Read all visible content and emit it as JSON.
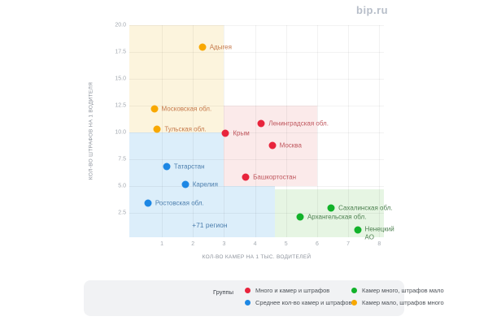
{
  "logo": {
    "text": "bip.ru"
  },
  "chart_data": {
    "type": "scatter",
    "title": "",
    "xlabel": "КОЛ-ВО КАМЕР НА 1 ТЫС. ВОДИТЕЛЕЙ",
    "ylabel": "КОЛ-ВО ШТРАФОВ НА 1 ВОДИТЕЛЯ",
    "xlim": [
      -0.05,
      8.15
    ],
    "ylim": [
      0.2,
      20
    ],
    "grid": true,
    "x_ticks": [
      {
        "value": 1,
        "label": "1"
      },
      {
        "value": 2,
        "label": "2"
      },
      {
        "value": 3,
        "label": "3"
      },
      {
        "value": 4,
        "label": "4"
      },
      {
        "value": 5,
        "label": "5"
      },
      {
        "value": 6,
        "label": "6"
      },
      {
        "value": 7,
        "label": "7"
      },
      {
        "value": 8,
        "label": "8"
      }
    ],
    "y_ticks": [
      {
        "value": 2.5,
        "label": "2.5"
      },
      {
        "value": 5,
        "label": "5.0"
      },
      {
        "value": 7.5,
        "label": "7.5"
      },
      {
        "value": 10,
        "label": "10.0"
      },
      {
        "value": 12.5,
        "label": "12.5"
      },
      {
        "value": 15,
        "label": "15.0"
      },
      {
        "value": 17.5,
        "label": "17.5"
      },
      {
        "value": 20,
        "label": "20.0"
      }
    ],
    "zones": [
      {
        "id": "zone-average",
        "color": "#dceefa",
        "x1": -0.05,
        "x2": 4.65,
        "y1": 0.2,
        "y2": 10
      },
      {
        "id": "zone-many-cameras-many-fines",
        "color": "#fbeaea",
        "x1": 3,
        "x2": 6,
        "y1": 5,
        "y2": 12.5
      },
      {
        "id": "zone-few-cameras-many-fines",
        "color": "#fcf4dd",
        "x1": -0.05,
        "x2": 3,
        "y1": 10,
        "y2": 20
      },
      {
        "id": "zone-many-cameras-few-fines",
        "color": "#e6f5e3",
        "x1": 4.65,
        "x2": 8.15,
        "y1": 0.2,
        "y2": 4.7
      }
    ],
    "series": [
      {
        "name": "Много и камер и штрафов",
        "color": "#e8243c",
        "label_color": "#bf555c",
        "points": [
          {
            "label": "Ленинградская обл.",
            "x": 4.2,
            "y": 10.85
          },
          {
            "label": "Крым",
            "x": 3.05,
            "y": 9.9
          },
          {
            "label": "Москва",
            "x": 4.55,
            "y": 8.75
          },
          {
            "label": "Башкортостан",
            "x": 3.7,
            "y": 5.85
          }
        ]
      },
      {
        "name": "Среднее кол-во камер и штрафов",
        "color": "#1d87e4",
        "label_color": "#4d7fae",
        "points": [
          {
            "label": "Татарстан",
            "x": 1.15,
            "y": 6.8
          },
          {
            "label": "Карелия",
            "x": 1.75,
            "y": 5.15
          },
          {
            "label": "Ростовская обл.",
            "x": 0.55,
            "y": 3.4
          }
        ]
      },
      {
        "name": "Камер много, штрафов мало",
        "color": "#12b22a",
        "label_color": "#4d8050",
        "points": [
          {
            "label": "Сахалинская обл.",
            "x": 6.45,
            "y": 2.95
          },
          {
            "label": "Архангельская обл.",
            "x": 5.45,
            "y": 2.1
          },
          {
            "label": "Ненецкий АО",
            "x": 7.3,
            "y": 0.85,
            "wrap": true
          }
        ]
      },
      {
        "name": "Камер мало, штрафов много",
        "color": "#f8a801",
        "label_color": "#c5784a",
        "points": [
          {
            "label": "Адыгея",
            "x": 2.3,
            "y": 17.95
          },
          {
            "label": "Московская обл.",
            "x": 0.75,
            "y": 12.2
          },
          {
            "label": "Тульская обл.",
            "x": 0.85,
            "y": 10.3
          }
        ]
      }
    ],
    "annotation": {
      "text": "+71 регион",
      "x": 2.54,
      "y": 1.37
    }
  },
  "legend": {
    "title": "Группы"
  }
}
